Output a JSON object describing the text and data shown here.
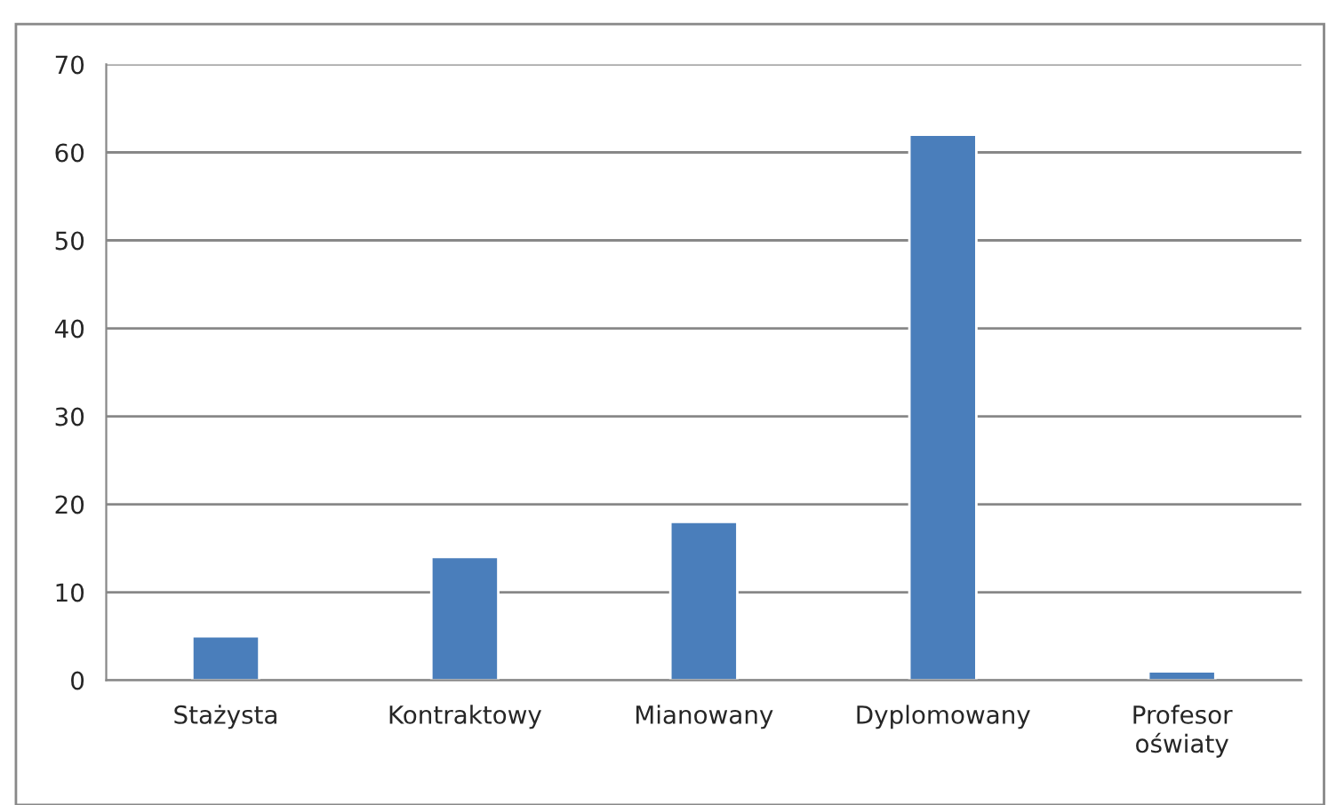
{
  "chart_data": {
    "type": "bar",
    "categories": [
      "Stażysta",
      "Kontraktowy",
      "Mianowany",
      "Dyplomowany",
      "Profesor\noświaty"
    ],
    "values": [
      5,
      14,
      18,
      62,
      1
    ],
    "color": "#4a7ebb",
    "ylim": [
      0,
      70
    ],
    "yticks": [
      0,
      10,
      20,
      30,
      40,
      50,
      60,
      70
    ],
    "grid": "y",
    "legend": false
  }
}
